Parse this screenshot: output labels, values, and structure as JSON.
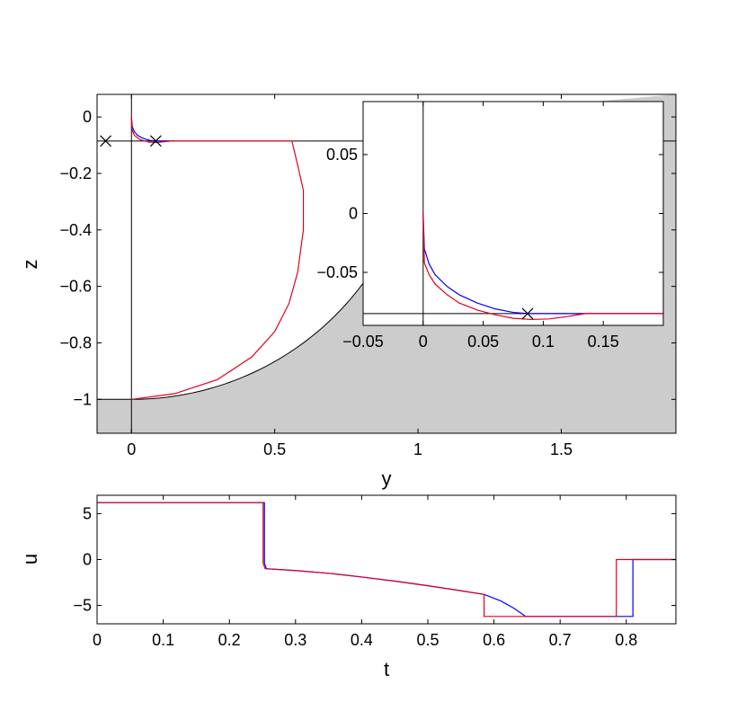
{
  "colors": {
    "obstacle": "#cccccc",
    "series_blue": "#0000ff",
    "series_red": "#e0001b",
    "axis": "#000000",
    "background": "#ffffff"
  },
  "chart_data": [
    {
      "id": "trajectory",
      "type": "line",
      "xlabel": "y",
      "ylabel": "z",
      "xlim": [
        -0.12,
        1.9
      ],
      "ylim": [
        -1.12,
        0.08
      ],
      "xticks": [
        0,
        0.5,
        1,
        1.5
      ],
      "xtick_labels": [
        "0",
        "0.5",
        "1",
        "1.5"
      ],
      "yticks": [
        0,
        -0.2,
        -0.4,
        -0.6,
        -0.8,
        -1
      ],
      "ytick_labels": [
        "0",
        "−0.2",
        "−0.4",
        "−0.6",
        "−0.8",
        "−1"
      ],
      "reference_lines": {
        "vertical_x": 0,
        "horizontal_y": -0.085
      },
      "markers": [
        {
          "x": -0.09,
          "y": -0.085,
          "symbol": "x"
        },
        {
          "x": 0.085,
          "y": -0.085,
          "symbol": "x"
        }
      ],
      "obstacle": {
        "description": "shaded region below circular arc",
        "arc_center": [
          0,
          0
        ],
        "arc_radius": 1
      },
      "series": [
        {
          "color": "blue",
          "x": [
            0,
            0.003,
            0.01,
            0.02,
            0.035,
            0.05,
            0.065,
            0.085,
            0.12,
            0.15
          ],
          "y": [
            0,
            -0.035,
            -0.052,
            -0.064,
            -0.073,
            -0.079,
            -0.083,
            -0.085,
            -0.085,
            -0.085
          ]
        },
        {
          "color": "red",
          "x": [
            0,
            0.002,
            0.01,
            0.03,
            0.06,
            0.09,
            0.12,
            0.14,
            0.56,
            0.58,
            0.6,
            0.6,
            0.58,
            0.55,
            0.5,
            0.42,
            0.3,
            0.15,
            0.0
          ],
          "y": [
            0,
            -0.045,
            -0.065,
            -0.08,
            -0.089,
            -0.09,
            -0.087,
            -0.085,
            -0.085,
            -0.17,
            -0.26,
            -0.4,
            -0.55,
            -0.66,
            -0.76,
            -0.85,
            -0.93,
            -0.98,
            -1.0
          ]
        }
      ]
    },
    {
      "id": "inset",
      "type": "line",
      "xlim": [
        -0.05,
        0.2
      ],
      "ylim": [
        -0.095,
        0.095
      ],
      "xticks": [
        -0.05,
        0,
        0.05,
        0.1,
        0.15
      ],
      "xtick_labels": [
        "−0.05",
        "0",
        "0.05",
        "0.1",
        "0.15"
      ],
      "yticks": [
        0.05,
        0,
        -0.05
      ],
      "ytick_labels": [
        "0.05",
        "0",
        "−0.05"
      ],
      "reference_lines": {
        "vertical_x": 0,
        "horizontal_y": -0.085
      },
      "markers": [
        {
          "x": 0.087,
          "y": -0.085,
          "symbol": "x"
        }
      ],
      "series": [
        {
          "color": "blue",
          "x": [
            0,
            0.001,
            0.005,
            0.01,
            0.02,
            0.03,
            0.045,
            0.06,
            0.075,
            0.087,
            0.1,
            0.2
          ],
          "y": [
            0,
            -0.03,
            -0.043,
            -0.052,
            -0.062,
            -0.069,
            -0.076,
            -0.081,
            -0.084,
            -0.085,
            -0.085,
            -0.085
          ]
        },
        {
          "color": "red",
          "x": [
            0,
            0.001,
            0.005,
            0.01,
            0.02,
            0.03,
            0.045,
            0.06,
            0.075,
            0.09,
            0.105,
            0.12,
            0.135,
            0.2
          ],
          "y": [
            0,
            -0.042,
            -0.052,
            -0.06,
            -0.069,
            -0.076,
            -0.082,
            -0.086,
            -0.089,
            -0.09,
            -0.0895,
            -0.0875,
            -0.085,
            -0.085
          ]
        }
      ]
    },
    {
      "id": "control",
      "type": "line",
      "xlabel": "t",
      "ylabel": "u",
      "xlim": [
        0,
        0.875
      ],
      "ylim": [
        -7,
        7
      ],
      "xticks": [
        0,
        0.1,
        0.2,
        0.3,
        0.4,
        0.5,
        0.6,
        0.7,
        0.8
      ],
      "xtick_labels": [
        "0",
        "0.1",
        "0.2",
        "0.3",
        "0.4",
        "0.5",
        "0.6",
        "0.7",
        "0.8"
      ],
      "yticks": [
        5,
        0,
        -5
      ],
      "ytick_labels": [
        "5",
        "0",
        "−5"
      ],
      "series": [
        {
          "color": "blue",
          "x": [
            0,
            0.253,
            0.253,
            0.256,
            0.3,
            0.35,
            0.4,
            0.45,
            0.5,
            0.55,
            0.585,
            0.61,
            0.63,
            0.648,
            0.81,
            0.81,
            0.875
          ],
          "y": [
            6.2,
            6.2,
            -0.4,
            -1.0,
            -1.2,
            -1.5,
            -1.9,
            -2.35,
            -2.85,
            -3.4,
            -3.8,
            -4.5,
            -5.3,
            -6.2,
            -6.2,
            0,
            0
          ]
        },
        {
          "color": "red",
          "x": [
            0,
            0.251,
            0.251,
            0.254,
            0.3,
            0.35,
            0.4,
            0.45,
            0.5,
            0.55,
            0.585,
            0.585,
            0.785,
            0.785,
            0.875
          ],
          "y": [
            6.2,
            6.2,
            -0.4,
            -1.0,
            -1.2,
            -1.5,
            -1.9,
            -2.35,
            -2.85,
            -3.4,
            -3.8,
            -6.2,
            -6.2,
            0,
            0
          ]
        }
      ]
    }
  ]
}
